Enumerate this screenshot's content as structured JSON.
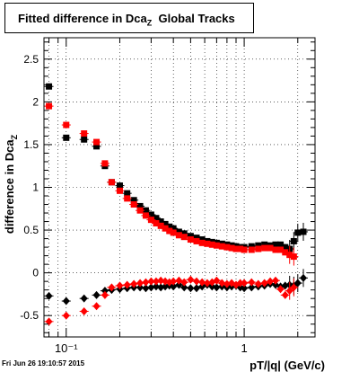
{
  "title_main": "Fitted difference in Dca",
  "title_sub": "Z",
  "title_suffix": "  Global Tracks",
  "footer_date": "Fri Jun 26 19:10:57 2015",
  "colors": {
    "series_black": "#000000",
    "series_red": "#ff0000"
  },
  "chart_data": {
    "type": "scatter",
    "title": "Fitted difference in DcaZ  Global Tracks",
    "xlabel": "pT/|q| (GeV/c)",
    "ylabel": "difference in Dca_Z",
    "xscale": "log",
    "xlim": [
      0.075,
      2.5
    ],
    "ylim": [
      -0.75,
      2.75
    ],
    "xticks": [
      {
        "value": 0.1,
        "label": "10⁻¹"
      },
      {
        "value": 1,
        "label": "1"
      }
    ],
    "yticks": [
      -0.5,
      0,
      0.5,
      1,
      1.5,
      2,
      2.5
    ],
    "grid": true,
    "series": [
      {
        "color": "black",
        "marker": "square",
        "points": [
          [
            0.08,
            2.18
          ],
          [
            0.1,
            1.58
          ],
          [
            0.126,
            1.56
          ],
          [
            0.148,
            1.48
          ],
          [
            0.165,
            1.25
          ],
          [
            0.18,
            1.06
          ],
          [
            0.2,
            1.02
          ],
          [
            0.22,
            0.93
          ],
          [
            0.24,
            0.85
          ],
          [
            0.26,
            0.78
          ],
          [
            0.28,
            0.73
          ],
          [
            0.3,
            0.68
          ],
          [
            0.32,
            0.64
          ],
          [
            0.34,
            0.6
          ],
          [
            0.36,
            0.57
          ],
          [
            0.38,
            0.54
          ],
          [
            0.4,
            0.52
          ],
          [
            0.43,
            0.48
          ],
          [
            0.46,
            0.46
          ],
          [
            0.5,
            0.43
          ],
          [
            0.54,
            0.41
          ],
          [
            0.58,
            0.39
          ],
          [
            0.62,
            0.37
          ],
          [
            0.66,
            0.36
          ],
          [
            0.7,
            0.35
          ],
          [
            0.75,
            0.34
          ],
          [
            0.8,
            0.33
          ],
          [
            0.85,
            0.32
          ],
          [
            0.9,
            0.31
          ],
          [
            0.95,
            0.3
          ],
          [
            1.0,
            0.3
          ],
          [
            1.1,
            0.31
          ],
          [
            1.2,
            0.32
          ],
          [
            1.3,
            0.33
          ],
          [
            1.4,
            0.32
          ],
          [
            1.5,
            0.33
          ],
          [
            1.6,
            0.33
          ],
          [
            1.7,
            0.3
          ],
          [
            1.8,
            0.28
          ],
          [
            1.9,
            0.37
          ],
          [
            2.0,
            0.47
          ],
          [
            2.15,
            0.48
          ]
        ]
      },
      {
        "color": "red",
        "marker": "square",
        "points": [
          [
            0.08,
            1.95
          ],
          [
            0.1,
            1.73
          ],
          [
            0.126,
            1.63
          ],
          [
            0.148,
            1.53
          ],
          [
            0.165,
            1.28
          ],
          [
            0.18,
            1.06
          ],
          [
            0.2,
            0.96
          ],
          [
            0.22,
            0.87
          ],
          [
            0.24,
            0.8
          ],
          [
            0.26,
            0.73
          ],
          [
            0.28,
            0.67
          ],
          [
            0.3,
            0.62
          ],
          [
            0.32,
            0.58
          ],
          [
            0.34,
            0.55
          ],
          [
            0.36,
            0.52
          ],
          [
            0.38,
            0.49
          ],
          [
            0.4,
            0.47
          ],
          [
            0.43,
            0.44
          ],
          [
            0.46,
            0.42
          ],
          [
            0.5,
            0.39
          ],
          [
            0.54,
            0.37
          ],
          [
            0.58,
            0.35
          ],
          [
            0.62,
            0.34
          ],
          [
            0.66,
            0.33
          ],
          [
            0.7,
            0.32
          ],
          [
            0.75,
            0.31
          ],
          [
            0.8,
            0.3
          ],
          [
            0.85,
            0.29
          ],
          [
            0.9,
            0.28
          ],
          [
            0.95,
            0.28
          ],
          [
            1.0,
            0.27
          ],
          [
            1.1,
            0.27
          ],
          [
            1.2,
            0.28
          ],
          [
            1.3,
            0.29
          ],
          [
            1.4,
            0.29
          ],
          [
            1.5,
            0.27
          ],
          [
            1.6,
            0.27
          ],
          [
            1.7,
            0.24
          ],
          [
            1.8,
            0.21
          ],
          [
            1.9,
            0.19
          ]
        ]
      },
      {
        "color": "black",
        "marker": "diamond",
        "points": [
          [
            0.08,
            -0.27
          ],
          [
            0.1,
            -0.33
          ],
          [
            0.126,
            -0.3
          ],
          [
            0.148,
            -0.26
          ],
          [
            0.165,
            -0.21
          ],
          [
            0.18,
            -0.2
          ],
          [
            0.2,
            -0.19
          ],
          [
            0.22,
            -0.18
          ],
          [
            0.24,
            -0.17
          ],
          [
            0.26,
            -0.17
          ],
          [
            0.28,
            -0.18
          ],
          [
            0.3,
            -0.17
          ],
          [
            0.32,
            -0.16
          ],
          [
            0.34,
            -0.17
          ],
          [
            0.36,
            -0.16
          ],
          [
            0.38,
            -0.15
          ],
          [
            0.4,
            -0.16
          ],
          [
            0.43,
            -0.14
          ],
          [
            0.46,
            -0.17
          ],
          [
            0.5,
            -0.18
          ],
          [
            0.54,
            -0.18
          ],
          [
            0.58,
            -0.16
          ],
          [
            0.62,
            -0.14
          ],
          [
            0.66,
            -0.16
          ],
          [
            0.7,
            -0.17
          ],
          [
            0.75,
            -0.16
          ],
          [
            0.8,
            -0.17
          ],
          [
            0.85,
            -0.16
          ],
          [
            0.9,
            -0.15
          ],
          [
            0.95,
            -0.17
          ],
          [
            1.0,
            -0.18
          ],
          [
            1.1,
            -0.17
          ],
          [
            1.2,
            -0.16
          ],
          [
            1.3,
            -0.15
          ],
          [
            1.4,
            -0.13
          ],
          [
            1.5,
            -0.14
          ],
          [
            1.6,
            -0.16
          ],
          [
            1.7,
            -0.15
          ],
          [
            1.8,
            -0.14
          ],
          [
            1.9,
            -0.15
          ],
          [
            2.0,
            -0.12
          ],
          [
            2.15,
            -0.06
          ]
        ]
      },
      {
        "color": "red",
        "marker": "diamond",
        "points": [
          [
            0.08,
            -0.57
          ],
          [
            0.1,
            -0.5
          ],
          [
            0.126,
            -0.45
          ],
          [
            0.148,
            -0.39
          ],
          [
            0.165,
            -0.26
          ],
          [
            0.18,
            -0.17
          ],
          [
            0.2,
            -0.15
          ],
          [
            0.22,
            -0.14
          ],
          [
            0.24,
            -0.13
          ],
          [
            0.26,
            -0.12
          ],
          [
            0.28,
            -0.11
          ],
          [
            0.3,
            -0.1
          ],
          [
            0.32,
            -0.1
          ],
          [
            0.34,
            -0.09
          ],
          [
            0.36,
            -0.1
          ],
          [
            0.38,
            -0.11
          ],
          [
            0.4,
            -0.1
          ],
          [
            0.43,
            -0.09
          ],
          [
            0.46,
            -0.11
          ],
          [
            0.5,
            -0.08
          ],
          [
            0.54,
            -0.1
          ],
          [
            0.58,
            -0.11
          ],
          [
            0.62,
            -0.12
          ],
          [
            0.66,
            -0.11
          ],
          [
            0.7,
            -0.09
          ],
          [
            0.75,
            -0.12
          ],
          [
            0.8,
            -0.13
          ],
          [
            0.85,
            -0.12
          ],
          [
            0.9,
            -0.14
          ],
          [
            0.95,
            -0.12
          ],
          [
            1.0,
            -0.12
          ],
          [
            1.1,
            -0.11
          ],
          [
            1.2,
            -0.13
          ],
          [
            1.3,
            -0.12
          ],
          [
            1.4,
            -0.1
          ],
          [
            1.5,
            -0.09
          ],
          [
            1.6,
            -0.19
          ],
          [
            1.7,
            -0.26
          ],
          [
            1.8,
            -0.21
          ],
          [
            1.9,
            -0.17
          ]
        ]
      }
    ]
  }
}
